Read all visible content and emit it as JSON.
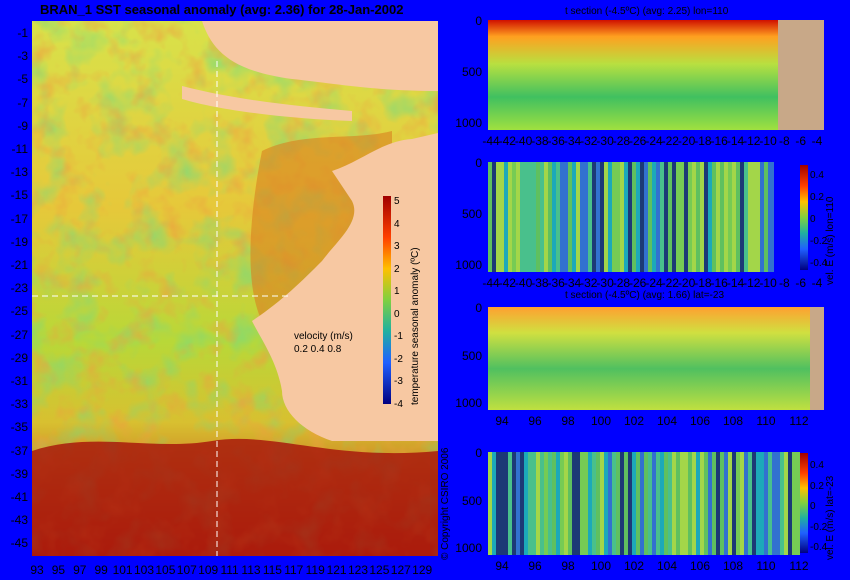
{
  "map": {
    "title": "BRAN_1 SST seasonal anomaly (avg: 2.36) for 28-Jan-2002",
    "y_ticks": [
      "-1",
      "-3",
      "-5",
      "-7",
      "-9",
      "-11",
      "-13",
      "-15",
      "-17",
      "-19",
      "-21",
      "-23",
      "-25",
      "-27",
      "-29",
      "-31",
      "-33",
      "-35",
      "-37",
      "-39",
      "-41",
      "-43",
      "-45"
    ],
    "x_ticks": [
      "93",
      "95",
      "97",
      "99",
      "101",
      "103",
      "105",
      "107",
      "109",
      "111",
      "113",
      "115",
      "117",
      "119",
      "121",
      "123",
      "125",
      "127",
      "129"
    ],
    "colorbar_label": "temperature seasonal anomaly (ºC)",
    "colorbar_ticks": [
      "5",
      "4",
      "3",
      "2",
      "1",
      "0",
      "-1",
      "-2",
      "-3",
      "-4"
    ],
    "velocity_label": "velocity (m/s)",
    "velocity_scale": "0.2 0.4 0.8",
    "copyright": "© Copyright CSIRO 2006"
  },
  "panels": {
    "p1": {
      "title": "t section (-4.5ºC) (avg: 2.25) lon=110",
      "y_ticks": [
        "0",
        "500",
        "1000"
      ],
      "x_ticks": [
        "-44",
        "-42",
        "-40",
        "-38",
        "-36",
        "-34",
        "-32",
        "-30",
        "-28",
        "-26",
        "-24",
        "-22",
        "-20",
        "-18",
        "-16",
        "-14",
        "-12",
        "-10",
        "-8",
        "-6",
        "-4"
      ]
    },
    "p2": {
      "y_ticks": [
        "0",
        "500",
        "1000"
      ],
      "x_ticks": [
        "-44",
        "-42",
        "-40",
        "-38",
        "-36",
        "-34",
        "-32",
        "-30",
        "-28",
        "-26",
        "-24",
        "-22",
        "-20",
        "-18",
        "-16",
        "-14",
        "-12",
        "-10",
        "-8",
        "-6",
        "-4"
      ],
      "cb_label": "vel. E (m/s) lon=110",
      "cb_ticks": [
        "0.4",
        "0.2",
        "0",
        "-0.2",
        "-0.4"
      ]
    },
    "p3": {
      "title": "t section (-4.5ºC) (avg: 1.66) lat=-23",
      "y_ticks": [
        "0",
        "500",
        "1000"
      ],
      "x_ticks": [
        "94",
        "96",
        "98",
        "100",
        "102",
        "104",
        "106",
        "108",
        "110",
        "112"
      ]
    },
    "p4": {
      "y_ticks": [
        "0",
        "500",
        "1000"
      ],
      "x_ticks": [
        "94",
        "96",
        "98",
        "100",
        "102",
        "104",
        "106",
        "108",
        "110",
        "112"
      ],
      "cb_label": "vel. E (m/s) lat=-23",
      "cb_ticks": [
        "0.4",
        "0.2",
        "0",
        "-0.2",
        "-0.4"
      ]
    }
  },
  "colors": {
    "background": "#0000ff",
    "land": "#f7c8a2",
    "mask": "#c8a888"
  }
}
